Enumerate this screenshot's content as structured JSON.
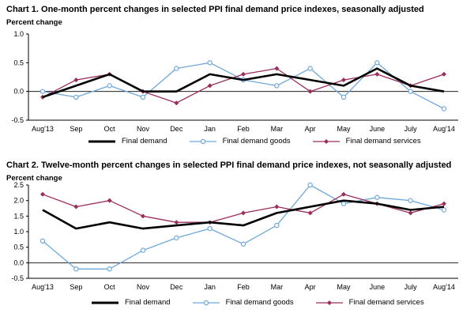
{
  "colors": {
    "demand": "#000000",
    "goods": "#6fa8dc",
    "services": "#9b2d5c"
  },
  "chart_data": [
    {
      "type": "line",
      "title": "Chart 1.  One-month percent changes in selected PPI final demand price indexes, seasonally adjusted",
      "ylabel": "Percent change",
      "xlabel": "",
      "categories": [
        "Aug'13",
        "Sep",
        "Oct",
        "Nov",
        "Dec",
        "Jan",
        "Feb",
        "Mar",
        "Apr",
        "May",
        "June",
        "July",
        "Aug'14"
      ],
      "ylim": [
        -0.5,
        1.0
      ],
      "yticks": [
        "1.0",
        "0.5",
        "0.0",
        "-0.5"
      ],
      "ytick_values": [
        1.0,
        0.5,
        0.0,
        -0.5
      ],
      "series": [
        {
          "name": "Final demand",
          "values": [
            -0.1,
            0.1,
            0.3,
            0.0,
            0.0,
            0.3,
            0.2,
            0.3,
            0.2,
            0.1,
            0.4,
            0.1,
            0.0
          ]
        },
        {
          "name": "Final demand goods",
          "values": [
            0.0,
            -0.1,
            0.1,
            -0.1,
            0.4,
            0.5,
            0.2,
            0.1,
            0.4,
            -0.1,
            0.5,
            0.0,
            -0.3
          ]
        },
        {
          "name": "Final demand services",
          "values": [
            -0.1,
            0.2,
            0.3,
            0.0,
            -0.2,
            0.1,
            0.3,
            0.4,
            0.0,
            0.2,
            0.3,
            0.1,
            0.3
          ]
        }
      ]
    },
    {
      "type": "line",
      "title": "Chart 2.  Twelve-month percent changes in selected PPI final demand price indexes, not seasonally adjusted",
      "ylabel": "Percent change",
      "xlabel": "",
      "categories": [
        "Aug'13",
        "Sep",
        "Oct",
        "Nov",
        "Dec",
        "Jan",
        "Feb",
        "Mar",
        "Apr",
        "May",
        "June",
        "July",
        "Aug'14"
      ],
      "ylim": [
        -0.5,
        2.5
      ],
      "yticks": [
        "2.5",
        "2.0",
        "1.5",
        "1.0",
        "0.5",
        "0.0",
        "-0.5"
      ],
      "ytick_values": [
        2.5,
        2.0,
        1.5,
        1.0,
        0.5,
        0.0,
        -0.5
      ],
      "series": [
        {
          "name": "Final demand",
          "values": [
            1.7,
            1.1,
            1.3,
            1.1,
            1.2,
            1.3,
            1.2,
            1.6,
            1.8,
            2.0,
            1.9,
            1.7,
            1.8
          ]
        },
        {
          "name": "Final demand goods",
          "values": [
            0.7,
            -0.2,
            -0.2,
            0.4,
            0.8,
            1.1,
            0.6,
            1.2,
            2.5,
            1.9,
            2.1,
            2.0,
            1.7
          ]
        },
        {
          "name": "Final demand services",
          "values": [
            2.2,
            1.8,
            2.0,
            1.5,
            1.3,
            1.3,
            1.6,
            1.8,
            1.6,
            2.2,
            1.9,
            1.6,
            1.9
          ]
        }
      ]
    }
  ]
}
